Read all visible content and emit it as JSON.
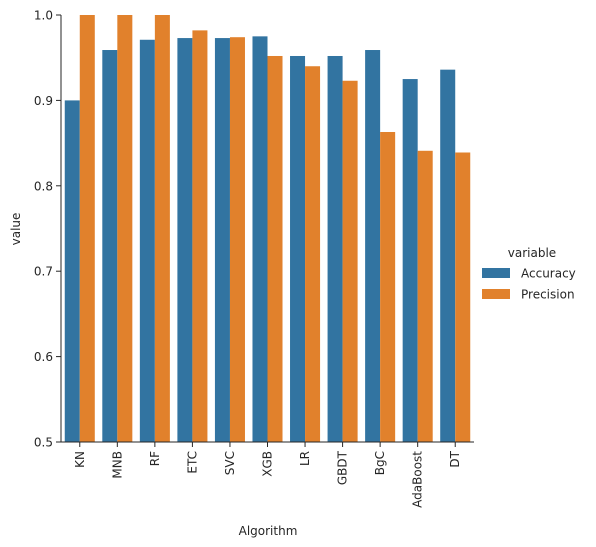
{
  "chart_data": {
    "type": "bar",
    "xlabel": "Algorithm",
    "ylabel": "value",
    "ylim": [
      0.5,
      1.0
    ],
    "yticks": [
      0.5,
      0.6,
      0.7,
      0.8,
      0.9,
      1.0
    ],
    "ytick_labels": [
      "0.5",
      "0.6",
      "0.7",
      "0.8",
      "0.9",
      "1.0"
    ],
    "grid": false,
    "legend_position": "right",
    "legend_title": "variable",
    "categories": [
      "KN",
      "MNB",
      "RF",
      "ETC",
      "SVC",
      "XGB",
      "LR",
      "GBDT",
      "BgC",
      "AdaBoost",
      "DT"
    ],
    "series": [
      {
        "name": "Accuracy",
        "color": "#3274a1",
        "values": [
          0.9,
          0.959,
          0.971,
          0.973,
          0.973,
          0.975,
          0.952,
          0.952,
          0.959,
          0.925,
          0.936
        ]
      },
      {
        "name": "Precision",
        "color": "#e1812c",
        "values": [
          1.0,
          1.0,
          1.0,
          0.982,
          0.974,
          0.952,
          0.94,
          0.923,
          0.863,
          0.841,
          0.839
        ]
      }
    ]
  }
}
